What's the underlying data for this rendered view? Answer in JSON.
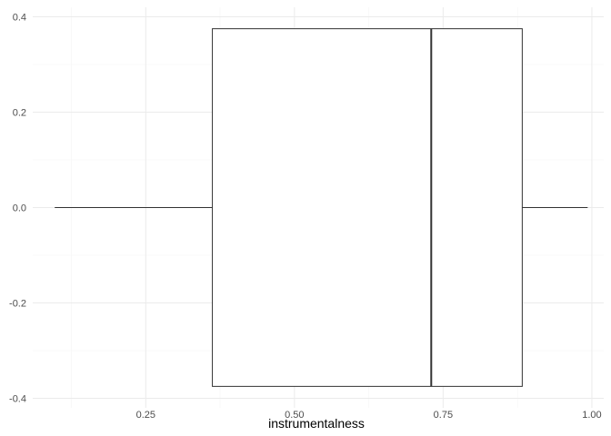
{
  "chart_data": {
    "type": "boxplot",
    "xlabel": "instrumentalness",
    "ylabel": "",
    "xlim": [
      0.06,
      1.02
    ],
    "ylim": [
      -0.42,
      0.42
    ],
    "x_ticks": [
      0.25,
      0.5,
      0.75,
      1.0
    ],
    "x_tick_labels": [
      "0.25",
      "0.50",
      "0.75",
      "1.00"
    ],
    "y_ticks": [
      -0.4,
      -0.2,
      0.0,
      0.2,
      0.4
    ],
    "y_tick_labels": [
      "-0.4",
      "-0.2",
      "0.0",
      "0.2",
      "0.4"
    ],
    "grid": true,
    "box": {
      "min": 0.097,
      "q1": 0.362,
      "median": 0.73,
      "q3": 0.883,
      "max": 0.993,
      "y_center": 0.0,
      "half_height": 0.375
    },
    "colors": {
      "grid_major": "#ebebeb",
      "grid_minor": "#f5f5f5",
      "box_stroke": "#333333",
      "box_fill": "#ffffff",
      "tick_text": "#4d4d4d",
      "title_text": "#000000"
    }
  }
}
